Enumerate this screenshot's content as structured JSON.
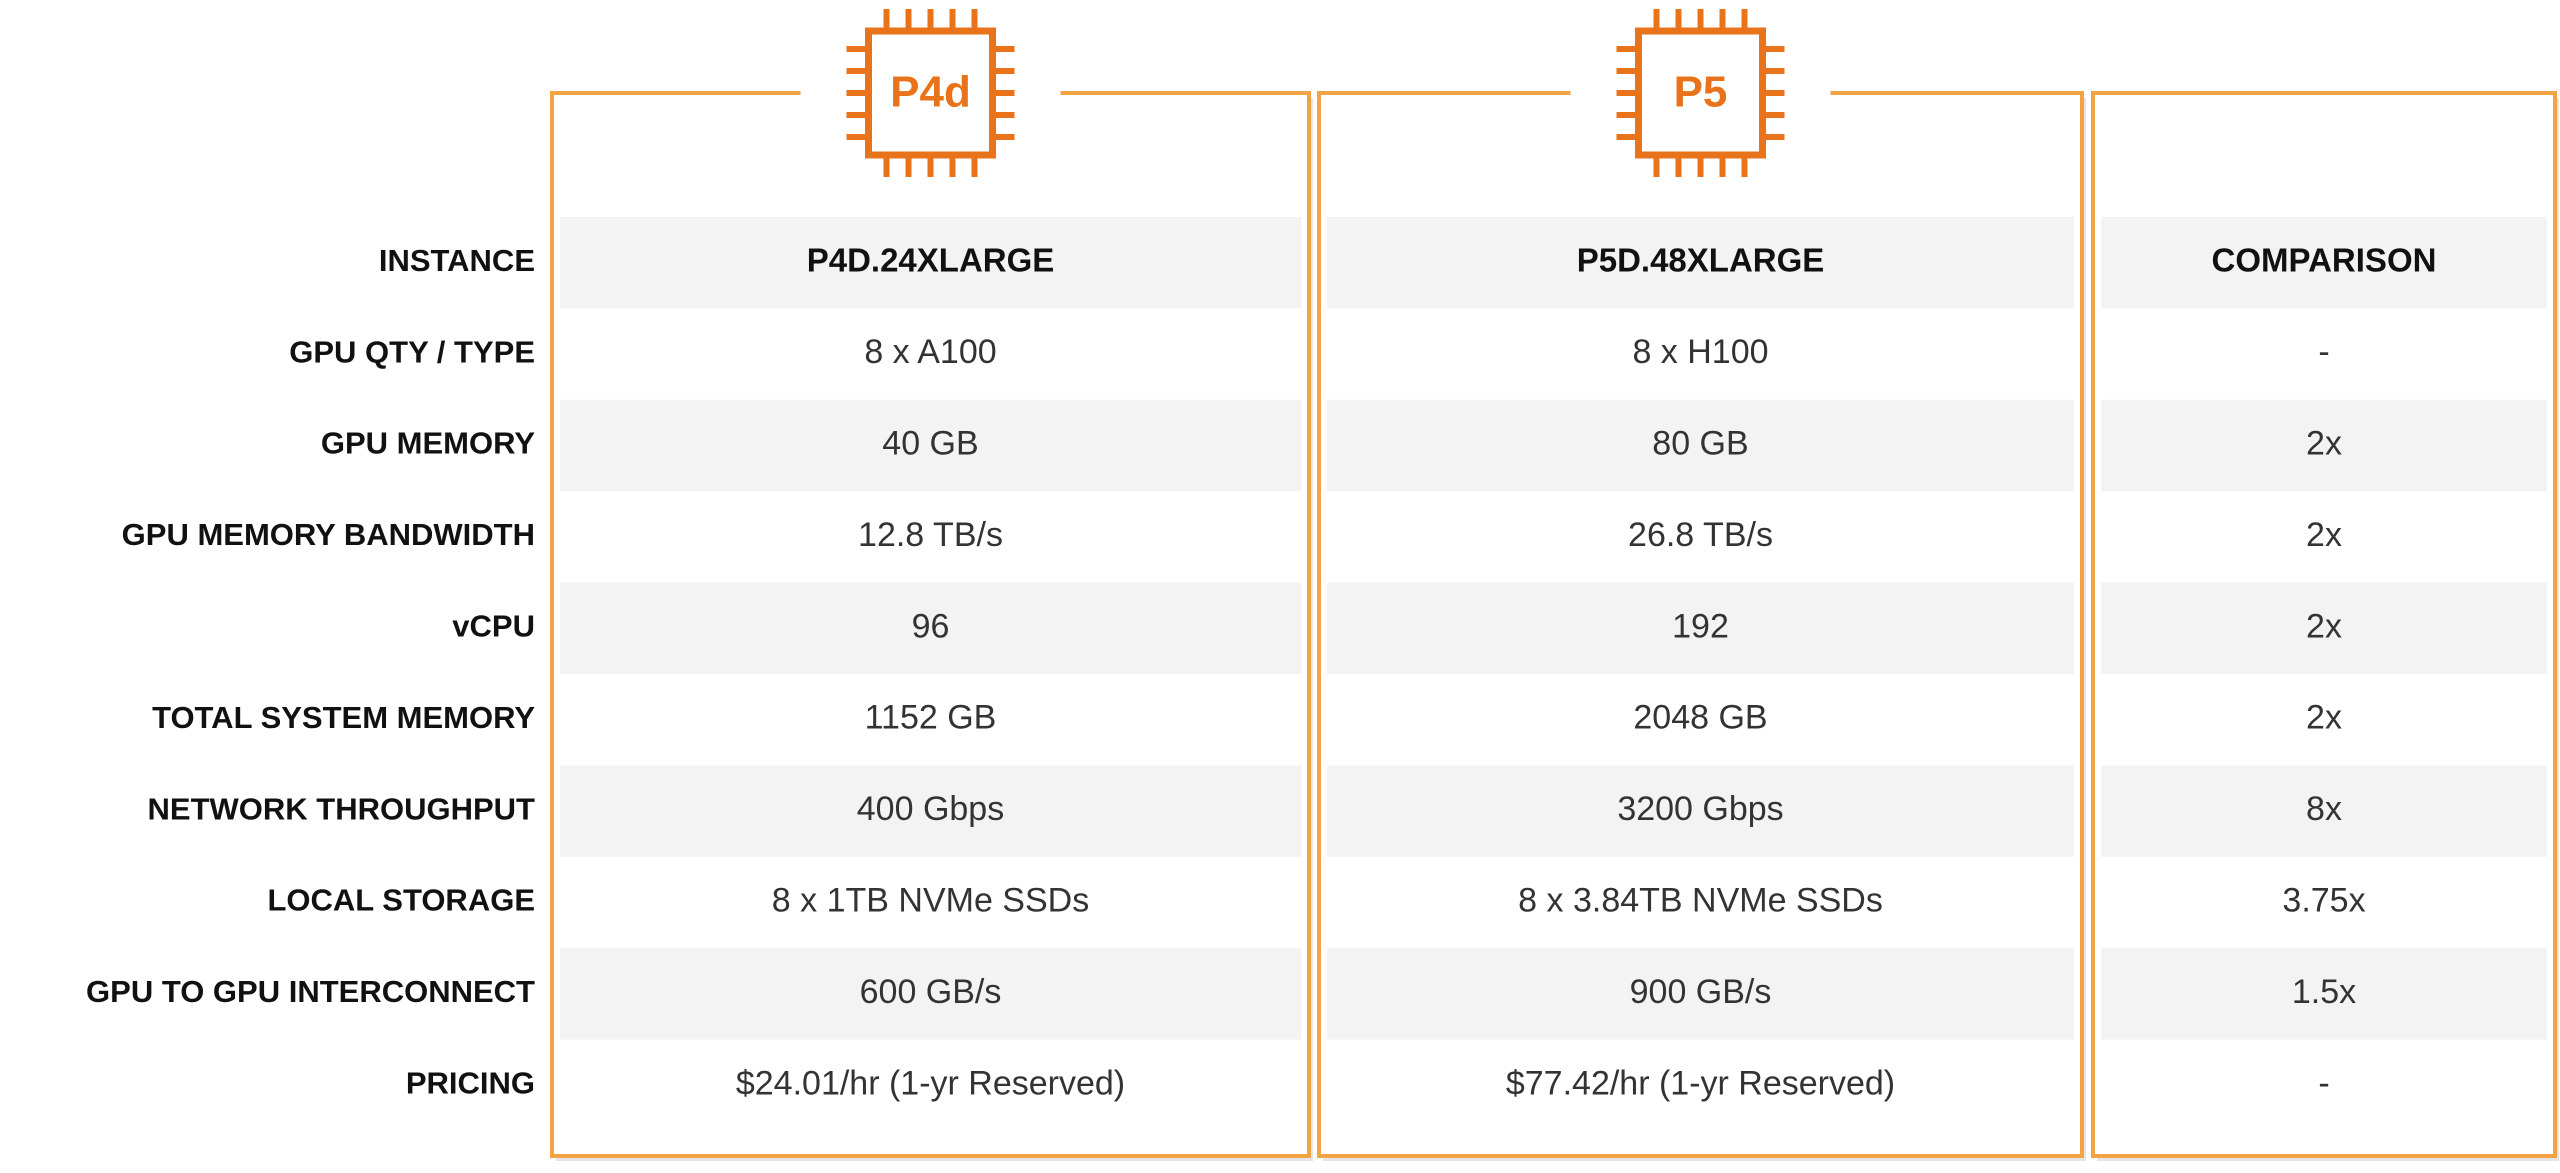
{
  "badges": [
    "P4d",
    "P5"
  ],
  "table": {
    "rows": [
      [
        "INSTANCE",
        "P4D.24XLARGE",
        "P5D.48XLARGE",
        "COMPARISON"
      ],
      [
        "GPU QTY / TYPE",
        "8 x A100",
        "8 x H100",
        "-"
      ],
      [
        "GPU MEMORY",
        "40 GB",
        "80 GB",
        "2x"
      ],
      [
        "GPU MEMORY BANDWIDTH",
        "12.8 TB/s",
        "26.8 TB/s",
        "2x"
      ],
      [
        "vCPU",
        "96",
        "192",
        "2x"
      ],
      [
        "TOTAL SYSTEM MEMORY",
        "1152 GB",
        "2048 GB",
        "2x"
      ],
      [
        "NETWORK THROUGHPUT",
        "400 Gbps",
        "3200 Gbps",
        "8x"
      ],
      [
        "LOCAL STORAGE",
        "8 x 1TB NVMe SSDs",
        "8 x 3.84TB NVMe SSDs",
        "3.75x"
      ],
      [
        "GPU TO GPU INTERCONNECT",
        "600 GB/s",
        "900 GB/s",
        "1.5x"
      ],
      [
        "PRICING",
        "$24.01/hr (1-yr Reserved)",
        "$77.42/hr (1-yr Reserved)",
        "-"
      ]
    ]
  }
}
